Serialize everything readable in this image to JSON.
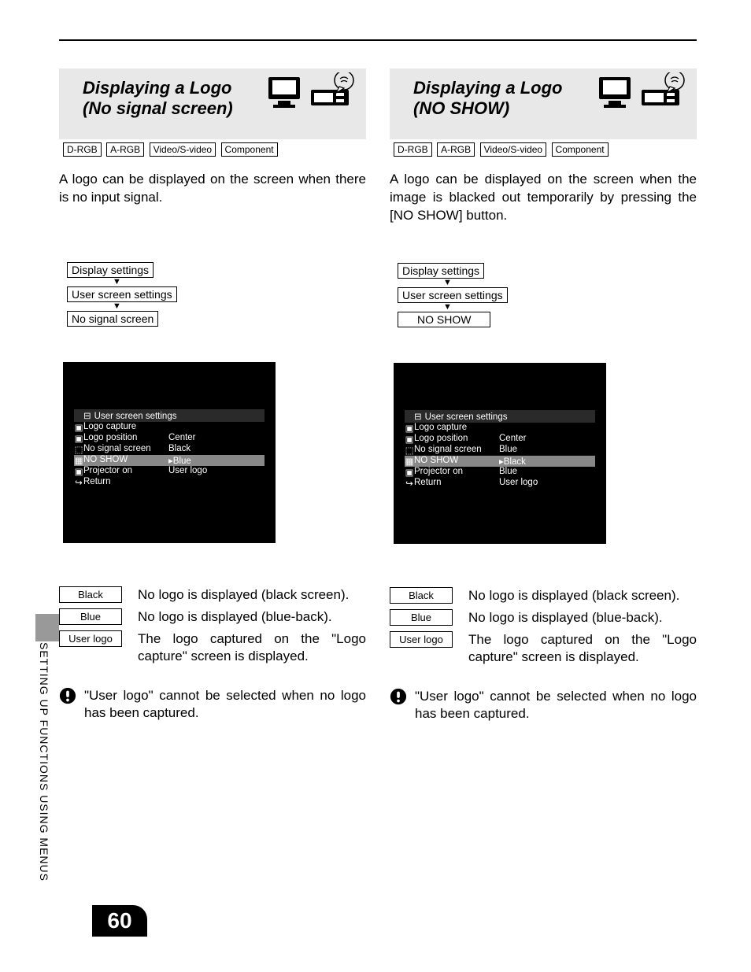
{
  "page": {
    "number": "60",
    "side_label": "SETTING UP FUNCTIONS USING MENUS"
  },
  "left": {
    "title_line1": "Displaying a Logo",
    "title_line2": "(No signal screen)",
    "tags": [
      "D-RGB",
      "A-RGB",
      "Video/S-video",
      "Component"
    ],
    "intro": "A logo can be displayed on the screen when there is no input signal.",
    "nav": [
      "Display settings",
      "User screen settings",
      "No signal screen"
    ],
    "osd": {
      "title": "User screen settings",
      "rows": [
        {
          "label": "Logo capture",
          "value": "",
          "selected": false
        },
        {
          "label": "Logo position",
          "value": "Center",
          "selected": false
        },
        {
          "label": "No signal screen",
          "value": "Black",
          "selected": false
        },
        {
          "label": "NO SHOW",
          "value": "▸Blue",
          "selected": true
        },
        {
          "label": "Projector on",
          "value": "User logo",
          "selected": false
        },
        {
          "label": "Return",
          "value": "",
          "selected": false
        }
      ]
    },
    "options": [
      {
        "tag": "Black",
        "desc": "No logo is displayed (black screen)."
      },
      {
        "tag": "Blue",
        "desc": "No logo is displayed (blue-back)."
      },
      {
        "tag": "User logo",
        "desc": "The logo captured on the \"Logo capture\" screen is displayed."
      }
    ],
    "note": "\"User logo\" cannot be selected when no logo has been captured."
  },
  "right": {
    "title_line1": "Displaying a Logo",
    "title_line2": "(NO SHOW)",
    "tags": [
      "D-RGB",
      "A-RGB",
      "Video/S-video",
      "Component"
    ],
    "intro": "A logo can be displayed on the screen when the image is blacked out temporarily by pressing the [NO SHOW] button.",
    "nav": [
      "Display settings",
      "User screen settings",
      "NO SHOW"
    ],
    "osd": {
      "title": "User screen settings",
      "rows": [
        {
          "label": "Logo capture",
          "value": "",
          "selected": false
        },
        {
          "label": "Logo position",
          "value": "Center",
          "selected": false
        },
        {
          "label": "No signal screen",
          "value": "Blue",
          "selected": false
        },
        {
          "label": "NO SHOW",
          "value": "▸Black",
          "selected": true
        },
        {
          "label": "Projector on",
          "value": "Blue",
          "selected": false
        },
        {
          "label": "Return",
          "value": "User logo",
          "selected": false
        }
      ]
    },
    "options": [
      {
        "tag": "Black",
        "desc": "No logo is displayed (black screen)."
      },
      {
        "tag": "Blue",
        "desc": "No logo is displayed (blue-back)."
      },
      {
        "tag": "User logo",
        "desc": "The logo captured on the \"Logo capture\" screen is displayed."
      }
    ],
    "note": "\"User logo\" cannot be selected when no logo has been captured."
  },
  "colors": {
    "header_bg": "#e8e8e8",
    "osd_bg": "#000000",
    "osd_title_bg": "#2a2a2a",
    "osd_sel_bg": "#888888",
    "side_tab": "#999999",
    "page_num_bg": "#000000"
  }
}
